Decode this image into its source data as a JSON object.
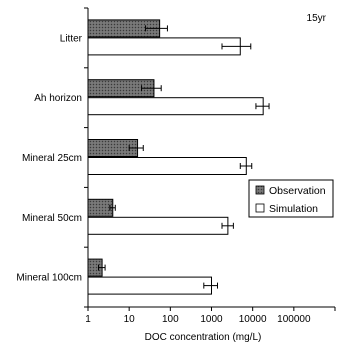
{
  "chart_data": {
    "type": "bar",
    "orientation": "horizontal",
    "annotation": "15yr",
    "xlabel": "DOC concentration (mg/L)",
    "ylabel": "",
    "x_scale": "log",
    "xlim": [
      1,
      1000000
    ],
    "x_ticks": [
      1,
      10,
      100,
      1000,
      10000,
      100000
    ],
    "x_tick_labels": [
      "1",
      "10",
      "100",
      "1000",
      "10000",
      "100000"
    ],
    "categories": [
      "Litter",
      "Ah horizon",
      "Mineral 25cm",
      "Mineral 50cm",
      "Mineral 100cm"
    ],
    "series": [
      {
        "name": "Observation",
        "fill": "#6b6b6b",
        "pattern": "dotted-dark",
        "values": [
          55,
          40,
          16,
          4,
          2.2
        ],
        "error_low": [
          25,
          20,
          10,
          3.4,
          1.8
        ],
        "error_high": [
          85,
          60,
          22,
          4.6,
          2.6
        ]
      },
      {
        "name": "Simulation",
        "fill": "#ffffff",
        "pattern": "none",
        "values": [
          5000,
          18000,
          7000,
          2500,
          1000
        ],
        "error_low": [
          1800,
          12000,
          5000,
          1800,
          650
        ],
        "error_high": [
          9000,
          25000,
          9500,
          3400,
          1400
        ]
      }
    ],
    "legend_position": "right-middle",
    "grid": false
  }
}
